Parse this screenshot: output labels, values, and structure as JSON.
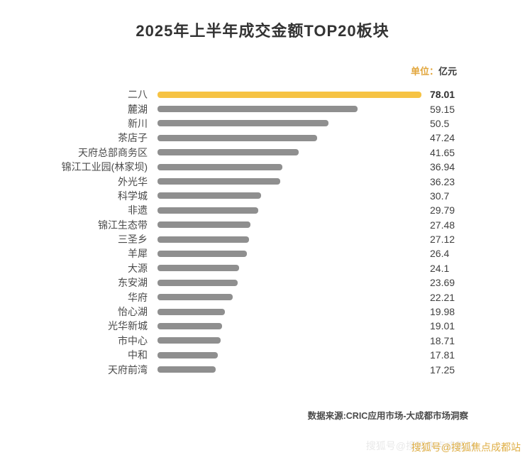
{
  "title": "2025年上半年成交金额TOP20板块",
  "unit": {
    "prefix": "单位：",
    "value": "亿元"
  },
  "chart_data": {
    "type": "bar",
    "orientation": "horizontal",
    "title": "2025年上半年成交金额TOP20板块",
    "unit": "亿元",
    "categories": [
      "二八",
      "麓湖",
      "新川",
      "茶店子",
      "天府总部商务区",
      "锦江工业园(林家坝)",
      "外光华",
      "科学城",
      "非遗",
      "锦江生态带",
      "三圣乡",
      "羊犀",
      "大源",
      "东安湖",
      "华府",
      "怡心湖",
      "光华新城",
      "市中心",
      "中和",
      "天府前湾"
    ],
    "values": [
      78.01,
      59.15,
      50.5,
      47.24,
      41.65,
      36.94,
      36.23,
      30.7,
      29.79,
      27.48,
      27.12,
      26.4,
      24.1,
      23.69,
      22.21,
      19.98,
      19.01,
      18.71,
      17.81,
      17.25
    ],
    "value_labels": [
      "78.01",
      "59.15",
      "50.5",
      "47.24",
      "41.65",
      "36.94",
      "36.23",
      "30.7",
      "29.79",
      "27.48",
      "27.12",
      "26.4",
      "24.1",
      "23.69",
      "22.21",
      "19.98",
      "19.01",
      "18.71",
      "17.81",
      "17.25"
    ],
    "highlight_index": 0,
    "highlight_color": "#F6C344",
    "bar_color": "#8F8F8F",
    "xlim": [
      0,
      78.01
    ],
    "grid": false,
    "legend": false
  },
  "footer": {
    "source": "数据来源:CRIC应用市场-大成都市场洞察"
  },
  "watermark": {
    "text": "搜狐号@搜狐焦点成都站",
    "color": "#DFAE45"
  }
}
